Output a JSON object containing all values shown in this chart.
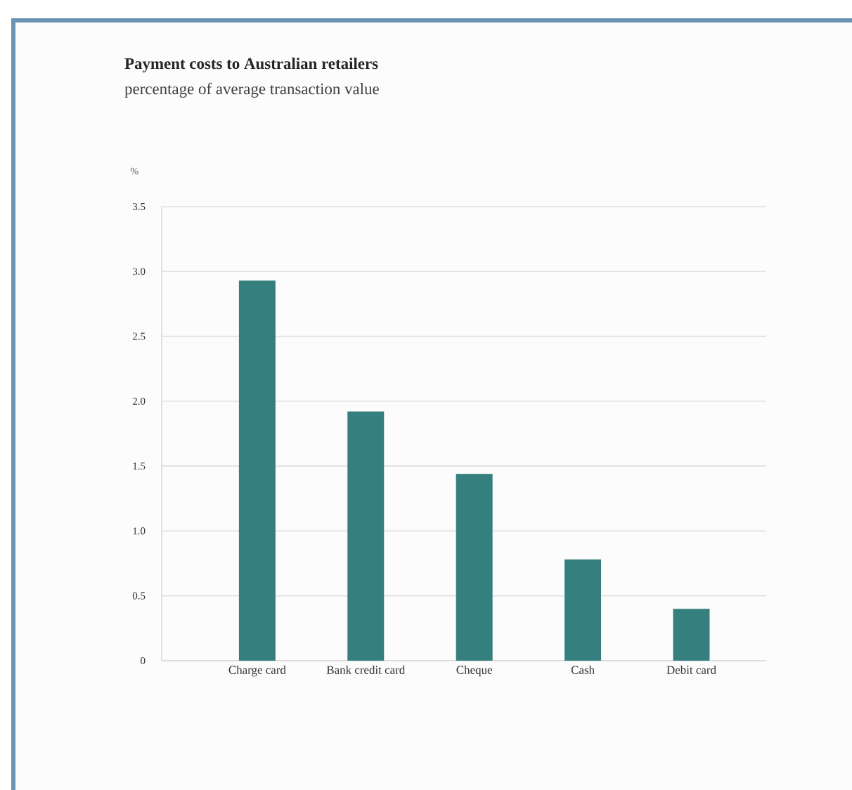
{
  "chart_data": {
    "type": "bar",
    "title": "Payment costs to Australian retailers",
    "subtitle": "percentage of average transaction value",
    "ylabel": "%",
    "categories": [
      "Charge card",
      "Bank credit card",
      "Cheque",
      "Cash",
      "Debit card"
    ],
    "values": [
      2.93,
      1.92,
      1.44,
      0.78,
      0.4
    ],
    "color": "#367f7f",
    "ylim": [
      0,
      3.5
    ],
    "yticks": [
      0,
      {
        "value": 0.5,
        "label": "0.5"
      },
      {
        "value": 1,
        "label": "1.0"
      },
      {
        "value": 1.5,
        "label": "1.5"
      },
      {
        "value": 2,
        "label": "2.0"
      },
      {
        "value": 2.5,
        "label": "2.5"
      },
      {
        "value": 3,
        "label": "3.0"
      },
      {
        "value": 3.5,
        "label": "3.5"
      }
    ],
    "grid": "y"
  }
}
